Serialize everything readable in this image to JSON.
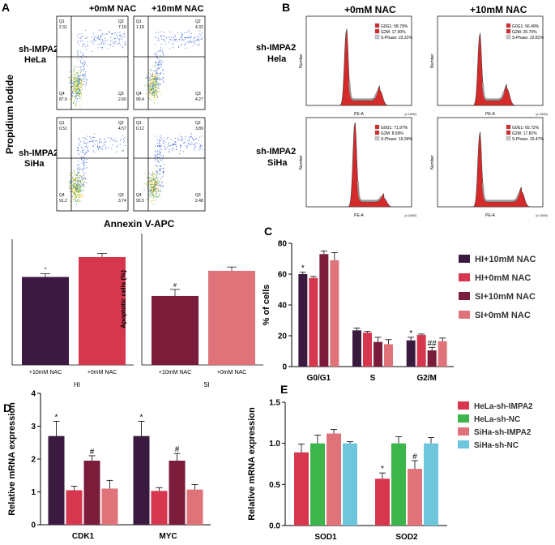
{
  "panels": {
    "A": "A",
    "B": "B",
    "C": "C",
    "D": "D",
    "E": "E"
  },
  "colors": {
    "hi10": "#3a1a3f",
    "hi0": "#d6374f",
    "si10": "#7a1c3a",
    "si0": "#e0737a",
    "hela_impa2": "#d6374f",
    "hela_nc": "#3cb54a",
    "siha_impa2": "#e0737a",
    "siha_nc": "#6ec6dd",
    "hist_fill": "#d42a2a"
  },
  "panelA": {
    "cols": [
      "+0mM NAC",
      "+10mM NAC"
    ],
    "rows": [
      [
        "sh-IMPA2",
        "HeLa"
      ],
      [
        "sh-IMPA2",
        "SiHa"
      ]
    ],
    "ylabel": "Propidium Iodide",
    "xlabel": "Annexin V-APC",
    "quadrants": [
      [
        {
          "Q1": "2.31",
          "Q2": "7.18",
          "Q3": "2.60",
          "Q4": "87.9"
        },
        {
          "Q1": "1.18",
          "Q2": "4.32",
          "Q3": "4.27",
          "Q4": "90.4"
        }
      ],
      [
        {
          "Q1": "0.51",
          "Q2": "4.57",
          "Q3": "3.74",
          "Q4": "91.2"
        },
        {
          "Q1": "0.12",
          "Q2": "3.89",
          "Q3": "2.48",
          "Q4": "93.5"
        }
      ]
    ]
  },
  "panelB": {
    "cols": [
      "+0mM NAC",
      "+10mM NAC"
    ],
    "rows": [
      [
        "sh-IMPA2",
        "Hela"
      ],
      [
        "sh-IMPA2",
        "SiHa"
      ]
    ],
    "legends": [
      [
        [
          "G0G1: 58.79%",
          "G2M: 17.90%",
          "S-Phase: 23.31%"
        ],
        [
          "G0G1: 56.49%",
          "G2M: 20.70%",
          "S-Phase: 22.81%"
        ]
      ],
      [
        [
          "G0G1: 71.97%",
          "G2M: 8.69%",
          "S-Phase: 19.34%"
        ],
        [
          "G0G1: 65.72%",
          "G2M: 17.81%",
          "S-Phase: 16.47%"
        ]
      ]
    ],
    "xlab": "PE-A",
    "ylab": "Number",
    "mult": "(x 1000)"
  },
  "apoptosis_hi": {
    "ylabel": "Apoptotic cells (%)",
    "group": "HI",
    "categories": [
      "+10mM NAC",
      "+0mM NAC"
    ],
    "values": [
      8.4,
      10.3
    ],
    "errors": [
      0.3,
      0.35
    ],
    "marks": [
      "*",
      ""
    ]
  },
  "apoptosis_si": {
    "ylabel": "Apoptotic cells (%)",
    "group": "SI",
    "categories": [
      "+10mM NAC",
      "+0mM NAC"
    ],
    "values": [
      6.3,
      8.6
    ],
    "errors": [
      0.6,
      0.35
    ],
    "marks": [
      "#",
      ""
    ]
  },
  "chart_data": [
    {
      "type": "bar",
      "panel": "C",
      "ylabel": "% of cells",
      "categories": [
        "G0/G1",
        "S",
        "G2/M"
      ],
      "ylim": [
        0,
        80
      ],
      "yticks": [
        0,
        20,
        40,
        60,
        80
      ],
      "series": [
        {
          "name": "HI+10mM NAC",
          "values": [
            60,
            23.5,
            17
          ],
          "errors": [
            1.2,
            1.5,
            2
          ],
          "marks": [
            "*",
            "",
            "*"
          ]
        },
        {
          "name": "HI+0mM NAC",
          "values": [
            57.5,
            22,
            20.5
          ],
          "errors": [
            1,
            0.8,
            0.6
          ],
          "marks": [
            "",
            "",
            ""
          ]
        },
        {
          "name": "SI+10mM NAC",
          "values": [
            73,
            16,
            10.5
          ],
          "errors": [
            2,
            3,
            2
          ],
          "marks": [
            "",
            "",
            "##"
          ]
        },
        {
          "name": "SI+0mM NAC",
          "values": [
            69,
            14.5,
            16.5
          ],
          "errors": [
            5,
            3,
            2
          ],
          "marks": [
            "",
            "",
            ""
          ]
        }
      ]
    },
    {
      "type": "bar",
      "panel": "D",
      "ylabel": "Relative mRNA expression",
      "categories": [
        "CDK1",
        "MYC"
      ],
      "ylim": [
        0,
        4
      ],
      "yticks": [
        0,
        1,
        2,
        3,
        4
      ],
      "series": [
        {
          "values": [
            2.7,
            2.7
          ],
          "errors": [
            0.45,
            0.45
          ],
          "marks": [
            "*",
            "*"
          ]
        },
        {
          "values": [
            1.05,
            1.03
          ],
          "errors": [
            0.12,
            0.1
          ],
          "marks": [
            "",
            ""
          ]
        },
        {
          "values": [
            1.95,
            1.95
          ],
          "errors": [
            0.15,
            0.22
          ],
          "marks": [
            "#",
            "#"
          ]
        },
        {
          "values": [
            1.1,
            1.07
          ],
          "errors": [
            0.25,
            0.15
          ],
          "marks": [
            "",
            ""
          ]
        }
      ]
    },
    {
      "type": "bar",
      "panel": "E",
      "ylabel": "Relative mRNA expression",
      "categories": [
        "SOD1",
        "SOD2"
      ],
      "ylim": [
        0,
        1.5
      ],
      "yticks": [
        0.0,
        0.5,
        1.0,
        1.5
      ],
      "series": [
        {
          "name": "HeLa-sh-IMPA2",
          "values": [
            0.89,
            0.57
          ],
          "errors": [
            0.1,
            0.07
          ],
          "marks": [
            "",
            "*"
          ]
        },
        {
          "name": "HeLa-sh-NC",
          "values": [
            1.0,
            1.0
          ],
          "errors": [
            0.1,
            0.08
          ],
          "marks": [
            "",
            ""
          ]
        },
        {
          "name": "SiHa-sh-IMPA2",
          "values": [
            1.12,
            0.69
          ],
          "errors": [
            0.05,
            0.1
          ],
          "marks": [
            "",
            "#"
          ]
        },
        {
          "name": "SiHa-sh-NC",
          "values": [
            1.0,
            1.0
          ],
          "errors": [
            0.02,
            0.07
          ],
          "marks": [
            "",
            ""
          ]
        }
      ]
    }
  ]
}
